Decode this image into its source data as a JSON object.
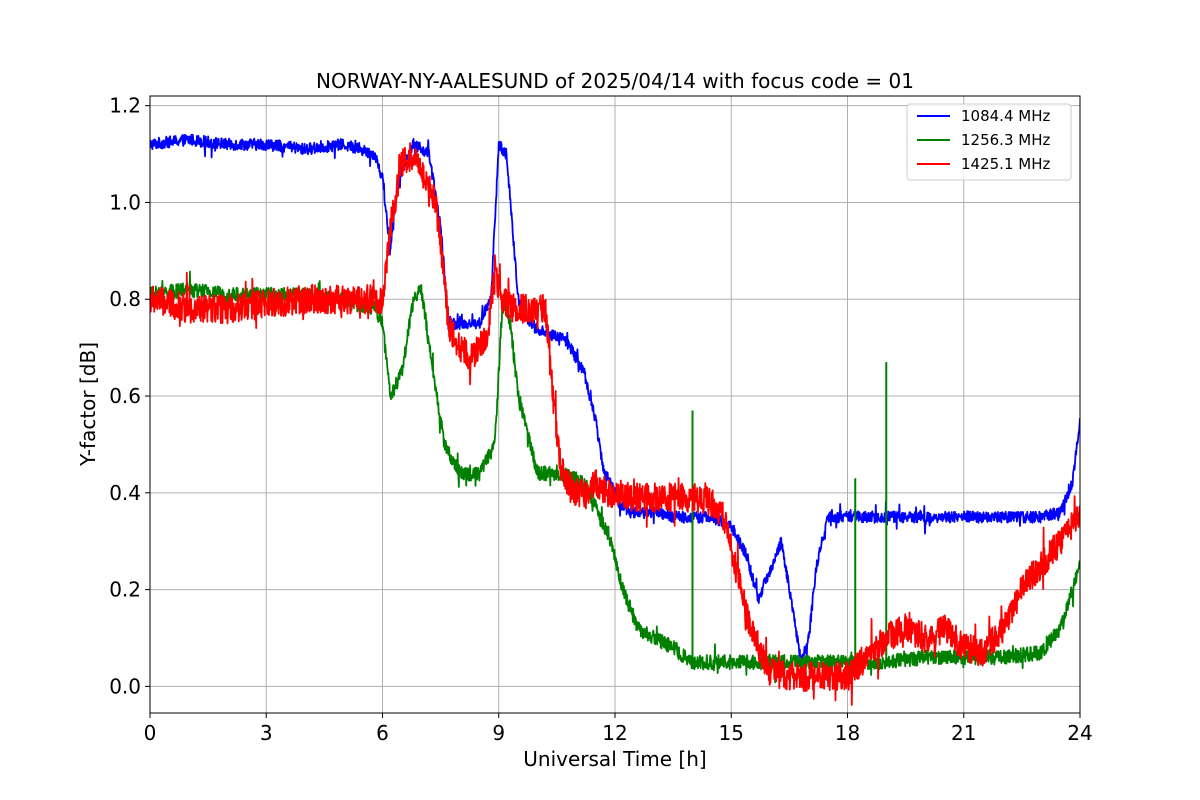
{
  "chart_data": {
    "type": "line",
    "title": "NORWAY-NY-AALESUND of 2025/04/14 with focus code = 01",
    "xlabel": "Universal Time [h]",
    "ylabel": "Y-factor [dB]",
    "xlim": [
      0,
      24
    ],
    "ylim": [
      -0.055,
      1.22
    ],
    "xticks": [
      0,
      3,
      6,
      9,
      12,
      15,
      18,
      21,
      24
    ],
    "yticks": [
      0.0,
      0.2,
      0.4,
      0.6,
      0.8,
      1.0,
      1.2
    ],
    "ytick_labels": [
      "0.0",
      "0.2",
      "0.4",
      "0.6",
      "0.8",
      "1.0",
      "1.2"
    ],
    "grid": true,
    "legend_position": "top-right",
    "series": [
      {
        "name": "1084.4 MHz",
        "color": "#0000ff",
        "x": [
          0,
          1,
          2,
          3,
          4,
          5,
          5.8,
          6.0,
          6.2,
          6.4,
          6.8,
          7.2,
          7.5,
          7.7,
          8.0,
          8.5,
          8.8,
          9.0,
          9.2,
          9.5,
          9.8,
          10.2,
          10.7,
          11.2,
          11.5,
          11.7,
          11.9,
          12.1,
          12.4,
          13.0,
          13.5,
          14.0,
          14.5,
          15.0,
          15.4,
          15.7,
          16.0,
          16.3,
          16.6,
          16.8,
          17.0,
          17.2,
          17.5,
          18.0,
          19.0,
          20.0,
          21.0,
          22.0,
          23.0,
          23.5,
          23.8,
          24.0
        ],
        "y": [
          1.12,
          1.13,
          1.12,
          1.12,
          1.11,
          1.12,
          1.1,
          1.05,
          0.9,
          1.05,
          1.12,
          1.1,
          0.95,
          0.75,
          0.75,
          0.75,
          0.8,
          1.12,
          1.1,
          0.8,
          0.75,
          0.73,
          0.72,
          0.65,
          0.55,
          0.45,
          0.42,
          0.38,
          0.36,
          0.36,
          0.35,
          0.35,
          0.35,
          0.33,
          0.27,
          0.18,
          0.24,
          0.3,
          0.15,
          0.05,
          0.1,
          0.25,
          0.35,
          0.35,
          0.35,
          0.35,
          0.35,
          0.35,
          0.35,
          0.36,
          0.42,
          0.55
        ],
        "noise": 0.012
      },
      {
        "name": "1256.3 MHz",
        "color": "#008000",
        "x": [
          0,
          1,
          2,
          3,
          4,
          5,
          5.8,
          6.0,
          6.2,
          6.5,
          6.8,
          7.0,
          7.3,
          7.6,
          8.0,
          8.5,
          8.9,
          9.1,
          9.3,
          9.5,
          10.0,
          10.5,
          11.0,
          11.3,
          11.6,
          11.9,
          12.2,
          12.6,
          13.0,
          13.5,
          13.8,
          14.0,
          14.5,
          15.0,
          16.0,
          17.0,
          18.0,
          19.0,
          20.0,
          21.0,
          22.0,
          23.0,
          23.5,
          23.8,
          24.0
        ],
        "y": [
          0.81,
          0.82,
          0.81,
          0.81,
          0.81,
          0.8,
          0.78,
          0.75,
          0.6,
          0.65,
          0.8,
          0.82,
          0.65,
          0.5,
          0.44,
          0.44,
          0.5,
          0.8,
          0.75,
          0.6,
          0.44,
          0.44,
          0.43,
          0.41,
          0.35,
          0.3,
          0.2,
          0.12,
          0.1,
          0.08,
          0.06,
          0.05,
          0.05,
          0.05,
          0.05,
          0.05,
          0.05,
          0.05,
          0.06,
          0.06,
          0.06,
          0.07,
          0.12,
          0.2,
          0.25
        ],
        "spikes": [
          [
            14.0,
            0.57
          ],
          [
            18.2,
            0.43
          ],
          [
            19.0,
            0.67
          ]
        ],
        "noise": 0.015
      },
      {
        "name": "1425.1 MHz",
        "color": "#ff0000",
        "x": [
          0,
          1,
          2,
          3,
          4,
          5,
          5.8,
          6.0,
          6.2,
          6.5,
          6.8,
          7.1,
          7.4,
          7.7,
          8.0,
          8.3,
          8.7,
          8.9,
          9.1,
          9.4,
          9.8,
          10.2,
          10.4,
          10.6,
          10.9,
          11.2,
          11.5,
          11.8,
          12.0,
          12.5,
          13.0,
          13.5,
          14.0,
          14.5,
          14.8,
          15.1,
          15.5,
          16.0,
          16.5,
          17.0,
          17.5,
          18.0,
          18.5,
          19.0,
          19.5,
          20.0,
          20.5,
          21.0,
          21.5,
          22.0,
          22.5,
          23.0,
          23.5,
          24.0
        ],
        "y": [
          0.8,
          0.78,
          0.78,
          0.79,
          0.8,
          0.8,
          0.8,
          0.8,
          0.95,
          1.08,
          1.1,
          1.05,
          1.0,
          0.75,
          0.7,
          0.68,
          0.72,
          0.85,
          0.8,
          0.78,
          0.78,
          0.78,
          0.6,
          0.45,
          0.4,
          0.4,
          0.42,
          0.4,
          0.4,
          0.39,
          0.39,
          0.39,
          0.39,
          0.38,
          0.35,
          0.25,
          0.12,
          0.03,
          0.02,
          0.02,
          0.02,
          0.02,
          0.06,
          0.1,
          0.12,
          0.1,
          0.12,
          0.08,
          0.07,
          0.12,
          0.2,
          0.25,
          0.3,
          0.35
        ],
        "noise": 0.03
      }
    ]
  }
}
